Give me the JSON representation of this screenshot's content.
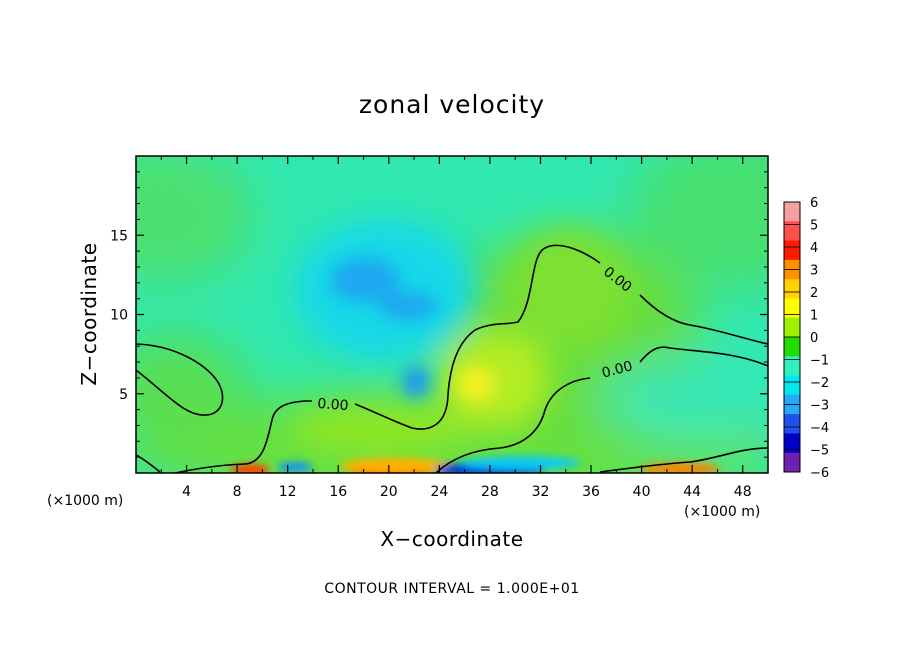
{
  "chart_data": {
    "type": "heatmap",
    "title": "zonal velocity",
    "xlabel": "X−coordinate",
    "ylabel": "Z−coordinate",
    "x_unit": "(×1000 m)",
    "xlim": [
      0,
      50
    ],
    "ylim": [
      0,
      20
    ],
    "x_ticks": [
      4,
      8,
      12,
      16,
      20,
      24,
      28,
      32,
      36,
      40,
      44,
      48
    ],
    "x_tick_labels": [
      "4",
      "8",
      "12",
      "16",
      "20",
      "24",
      "28",
      "32",
      "36",
      "40",
      "44",
      "48"
    ],
    "y_ticks": [
      5,
      10,
      15
    ],
    "y_tick_labels": [
      "5",
      "10",
      "15"
    ],
    "colorbar": {
      "levels": [
        6,
        5,
        4,
        3,
        2,
        1,
        0,
        -1,
        -2,
        -3,
        -4,
        -5,
        -6
      ],
      "labels": [
        "6",
        "5",
        "4",
        "3",
        "2",
        "1",
        "0",
        "−1",
        "−2",
        "−3",
        "−4",
        "−5",
        "−6"
      ],
      "colors": [
        "#f4a0a0",
        "#ff5050",
        "#ff1a00",
        "#ff9000",
        "#ffd200",
        "#ffff00",
        "#a0f000",
        "#22dd00",
        "#30f0c0",
        "#00e8f0",
        "#28a8f8",
        "#2050f0",
        "#0000c8",
        "#7020b0"
      ]
    },
    "contour_value_label": "0.00",
    "features": [
      {
        "kind": "background",
        "value": -1.2
      },
      {
        "x": 18.5,
        "z": 11.5,
        "value": -3.2
      },
      {
        "x": 21.5,
        "z": 10.0,
        "value": -3.0
      },
      {
        "x": 21.5,
        "z": 5.5,
        "value": -3.0
      },
      {
        "x": 27.0,
        "z": 5.5,
        "value": 2.0
      },
      {
        "x": 33.0,
        "z": 10.0,
        "value": 1.0
      },
      {
        "x": 22.0,
        "z": 0.3,
        "value": 5.0
      },
      {
        "x": 28.0,
        "z": 0.3,
        "value": -5.0
      },
      {
        "x": 9.0,
        "z": 0.3,
        "value": 4.0
      },
      {
        "x": 43.0,
        "z": 0.3,
        "value": 4.0
      }
    ],
    "contour_interval_text": "CONTOUR INTERVAL = 1.000E+01"
  }
}
